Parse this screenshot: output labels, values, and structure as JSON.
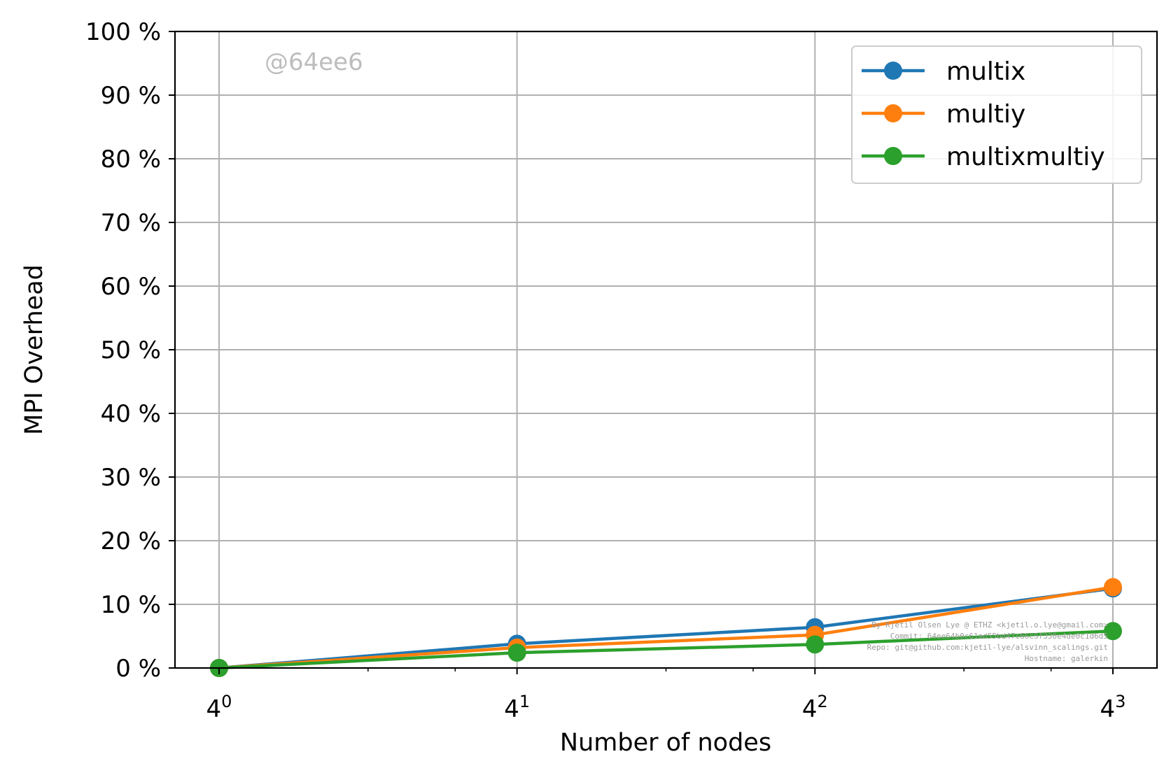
{
  "chart_data": {
    "type": "line",
    "title": "",
    "xlabel": "Number of nodes",
    "ylabel": "MPI Overhead",
    "x_scale": "log4",
    "x": [
      1,
      4,
      16,
      64
    ],
    "x_tick_bases": [
      "4",
      "4",
      "4",
      "4"
    ],
    "x_tick_exponents": [
      "0",
      "1",
      "2",
      "3"
    ],
    "ylim": [
      0,
      100
    ],
    "y_ticks": [
      0,
      10,
      20,
      30,
      40,
      50,
      60,
      70,
      80,
      90,
      100
    ],
    "y_tick_labels": [
      "0 %",
      "10 %",
      "20 %",
      "30 %",
      "40 %",
      "50 %",
      "60 %",
      "70 %",
      "80 %",
      "90 %",
      "100 %"
    ],
    "grid": true,
    "legend_position": "top-right",
    "series": [
      {
        "name": "multix",
        "color": "#1f77b4",
        "values": [
          0,
          3.8,
          6.4,
          12.5
        ]
      },
      {
        "name": "multiy",
        "color": "#ff7f0e",
        "values": [
          0,
          3.2,
          5.2,
          12.7
        ]
      },
      {
        "name": "multixmultiy",
        "color": "#2ca02c",
        "values": [
          0,
          2.4,
          3.7,
          5.8
        ]
      }
    ],
    "annotations": {
      "watermark": "@64ee6",
      "credit_lines": [
        "By Kjetil Olsen Lye @ ETHZ <kjetil.o.lye@gmail.com>",
        "Commit: 64ee64b0c61ad55bd47c66c5f330e4de0c1d6d5",
        "Repo: git@github.com:kjetil-lye/alsvinn_scalings.git",
        "Hostname: galerkin"
      ]
    }
  }
}
